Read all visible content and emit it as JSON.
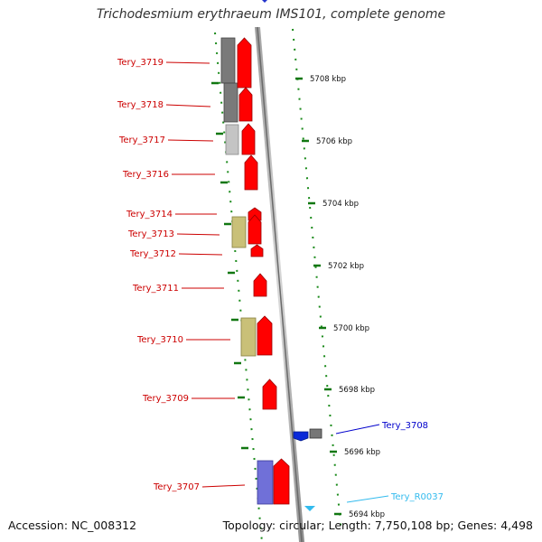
{
  "title": "Trichodesmium erythraeum IMS101, complete genome",
  "scale_labels": [
    "5708 kbp",
    "5706 kbp",
    "5704 kbp",
    "5702 kbp",
    "5700 kbp",
    "5698 kbp",
    "5696 kbp",
    "5694 kbp"
  ],
  "genes_forward": [
    "Tery_3719",
    "Tery_3718",
    "Tery_3717",
    "Tery_3716",
    "Tery_3714",
    "Tery_3713",
    "Tery_3712",
    "Tery_3711",
    "Tery_3710",
    "Tery_3709",
    "Tery_3707"
  ],
  "genes_reverse": [
    "Tery_3708",
    "Tery_R0037"
  ],
  "colors": {
    "cds": "#ff0000",
    "label_forward": "#cc0000",
    "label_reverse_cds": "#0000cc",
    "label_rna": "#33bbee",
    "backbone": "#888888",
    "tick": "#117711"
  },
  "footer": {
    "accession": "Accession: NC_008312",
    "info": "Topology: circular; Length: 7,750,108 bp; Genes: 4,498"
  }
}
